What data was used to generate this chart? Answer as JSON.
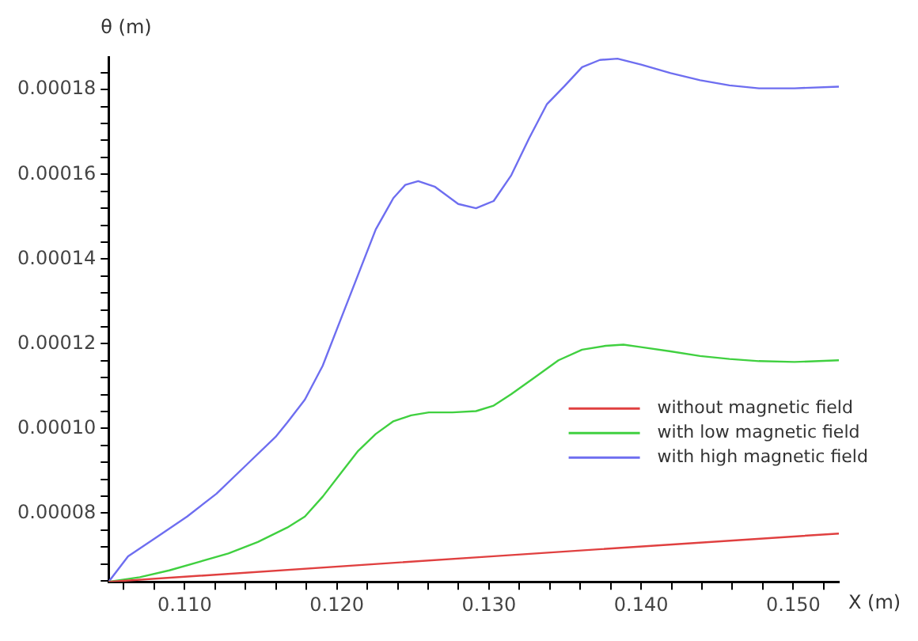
{
  "chart_data": {
    "type": "line",
    "xlabel": "X (m)",
    "ylabel": "θ (m)",
    "xlim": [
      0.105,
      0.153
    ],
    "ylim": [
      6.38e-05,
      0.0001877
    ],
    "xticks": [
      {
        "value": 0.106,
        "label": null
      },
      {
        "value": 0.108,
        "label": null
      },
      {
        "value": 0.11,
        "label": "0.110"
      },
      {
        "value": 0.112,
        "label": null
      },
      {
        "value": 0.114,
        "label": null
      },
      {
        "value": 0.116,
        "label": null
      },
      {
        "value": 0.118,
        "label": null
      },
      {
        "value": 0.12,
        "label": "0.120"
      },
      {
        "value": 0.122,
        "label": null
      },
      {
        "value": 0.124,
        "label": null
      },
      {
        "value": 0.126,
        "label": null
      },
      {
        "value": 0.128,
        "label": null
      },
      {
        "value": 0.13,
        "label": "0.130"
      },
      {
        "value": 0.132,
        "label": null
      },
      {
        "value": 0.134,
        "label": null
      },
      {
        "value": 0.136,
        "label": null
      },
      {
        "value": 0.138,
        "label": null
      },
      {
        "value": 0.14,
        "label": "0.140"
      },
      {
        "value": 0.142,
        "label": null
      },
      {
        "value": 0.144,
        "label": null
      },
      {
        "value": 0.146,
        "label": null
      },
      {
        "value": 0.148,
        "label": null
      },
      {
        "value": 0.15,
        "label": "0.150"
      },
      {
        "value": 0.152,
        "label": null
      }
    ],
    "yticks": [
      {
        "value": 6.4e-05,
        "label": null
      },
      {
        "value": 6.8e-05,
        "label": null
      },
      {
        "value": 7.2e-05,
        "label": null
      },
      {
        "value": 7.6e-05,
        "label": null
      },
      {
        "value": 8e-05,
        "label": "0.00008"
      },
      {
        "value": 8.4e-05,
        "label": null
      },
      {
        "value": 8.8e-05,
        "label": null
      },
      {
        "value": 9.2e-05,
        "label": null
      },
      {
        "value": 9.6e-05,
        "label": null
      },
      {
        "value": 0.0001,
        "label": "0.00010"
      },
      {
        "value": 0.000104,
        "label": null
      },
      {
        "value": 0.000108,
        "label": null
      },
      {
        "value": 0.000112,
        "label": null
      },
      {
        "value": 0.000116,
        "label": null
      },
      {
        "value": 0.00012,
        "label": "0.00012"
      },
      {
        "value": 0.000124,
        "label": null
      },
      {
        "value": 0.000128,
        "label": null
      },
      {
        "value": 0.000132,
        "label": null
      },
      {
        "value": 0.000136,
        "label": null
      },
      {
        "value": 0.00014,
        "label": "0.00014"
      },
      {
        "value": 0.000144,
        "label": null
      },
      {
        "value": 0.000148,
        "label": null
      },
      {
        "value": 0.000152,
        "label": null
      },
      {
        "value": 0.000156,
        "label": null
      },
      {
        "value": 0.00016,
        "label": "0.00016"
      },
      {
        "value": 0.000164,
        "label": null
      },
      {
        "value": 0.000168,
        "label": null
      },
      {
        "value": 0.000172,
        "label": null
      },
      {
        "value": 0.000176,
        "label": null
      },
      {
        "value": 0.00018,
        "label": "0.00018"
      },
      {
        "value": 0.000184,
        "label": null
      }
    ],
    "grid": false,
    "legend": "right",
    "marker": "none",
    "line_style": "solid",
    "series": [
      {
        "name": "without magnetic field",
        "color": "#e04040",
        "x": [
          0.105,
          0.13012,
          0.153
        ],
        "values": [
          6.38e-05,
          6.98e-05,
          7.52e-05
        ]
      },
      {
        "name": "with low magnetic field",
        "color": "#40d040",
        "x": [
          0.105,
          0.10705,
          0.10899,
          0.11093,
          0.11287,
          0.11481,
          0.11674,
          0.1179,
          0.11907,
          0.12023,
          0.1214,
          0.12256,
          0.12372,
          0.12488,
          0.12605,
          0.1276,
          0.12915,
          0.13031,
          0.13147,
          0.13302,
          0.13457,
          0.13612,
          0.13767,
          0.13884,
          0.14,
          0.14194,
          0.14388,
          0.14581,
          0.14775,
          0.15008,
          0.153
        ],
        "values": [
          6.38e-05,
          6.49e-05,
          6.65e-05,
          6.85e-05,
          7.05e-05,
          7.32e-05,
          7.66e-05,
          7.92e-05,
          8.39e-05,
          8.93e-05,
          9.47e-05,
          9.87e-05,
          0.0001017,
          0.0001031,
          0.0001038,
          0.0001038,
          0.0001041,
          0.0001054,
          0.0001081,
          0.0001121,
          0.0001161,
          0.0001186,
          0.0001195,
          0.0001198,
          0.0001192,
          0.0001182,
          0.0001171,
          0.0001164,
          0.0001159,
          0.0001157,
          0.0001161
        ]
      },
      {
        "name": "with high magnetic field",
        "color": "#6e6ef0",
        "x": [
          0.105,
          0.10628,
          0.10822,
          0.11016,
          0.11209,
          0.11403,
          0.11597,
          0.11674,
          0.1179,
          0.11907,
          0.12023,
          0.1214,
          0.12256,
          0.12372,
          0.1245,
          0.12535,
          0.12643,
          0.12798,
          0.12915,
          0.13031,
          0.13147,
          0.13264,
          0.1338,
          0.13496,
          0.13612,
          0.13729,
          0.13845,
          0.14,
          0.14194,
          0.14388,
          0.14581,
          0.14775,
          0.15008,
          0.153
        ],
        "values": [
          6.38e-05,
          6.98e-05,
          7.45e-05,
          7.92e-05,
          8.46e-05,
          9.13e-05,
          9.8e-05,
          0.0001014,
          0.0001068,
          0.0001148,
          0.0001255,
          0.0001363,
          0.000147,
          0.0001544,
          0.0001575,
          0.0001584,
          0.0001571,
          0.000153,
          0.000152,
          0.0001537,
          0.0001598,
          0.0001685,
          0.0001765,
          0.0001808,
          0.0001853,
          0.000187,
          0.0001873,
          0.0001859,
          0.0001839,
          0.0001822,
          0.000181,
          0.0001803,
          0.0001803,
          0.0001807
        ]
      }
    ]
  }
}
